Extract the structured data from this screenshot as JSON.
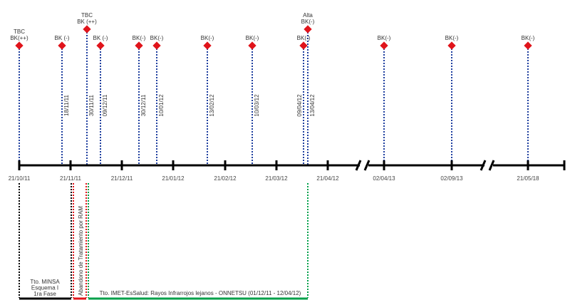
{
  "colors": {
    "axis": "#000000",
    "event_line": "#1f3f9f",
    "marker": "#e0141b",
    "phase1": "#000000",
    "abandon": "#e0141b",
    "imet": "#00a04a"
  },
  "axis_ticks": [
    "21/10/11",
    "21/11/11",
    "21/12/11",
    "21/01/12",
    "21/02/12",
    "21/03/12",
    "21/04/12",
    "02/04/13",
    "02/09/13",
    "21/05/18"
  ],
  "events": [
    {
      "label": [
        "TBC",
        "BK(++)"
      ],
      "date": ""
    },
    {
      "label": [
        "BK (-)"
      ],
      "date": "18/11/11"
    },
    {
      "label": [
        "TBC",
        "BK (++)"
      ],
      "date": "30/11/11"
    },
    {
      "label": [
        "BK (-)"
      ],
      "date": "09/12/11"
    },
    {
      "label": [
        "BK(-)"
      ],
      "date": "30/12/11"
    },
    {
      "label": [
        "BK(-)"
      ],
      "date": "10/01/12"
    },
    {
      "label": [
        "BK(-)"
      ],
      "date": "13/02/12"
    },
    {
      "label": [
        "BK(-)"
      ],
      "date": "10/03/12"
    },
    {
      "label": [
        "BK(-)"
      ],
      "date": "09/04/12"
    },
    {
      "label": [
        "Alta",
        "BK(-)"
      ],
      "date": "13/04/12"
    },
    {
      "label": [
        "BK(-)"
      ],
      "date": ""
    },
    {
      "label": [
        "BK(-)"
      ],
      "date": ""
    },
    {
      "label": [
        "BK(-)"
      ],
      "date": ""
    }
  ],
  "phases": {
    "minsa": [
      "Tto. MINSA",
      "Esquema I",
      "1ra Fase"
    ],
    "abandon": "Abandono de Tratamiento por RAM",
    "imet": "Tto. IMET-EsSalud: Rayos Infrarrojos lejanos - ONNETSU (01/12/11 - 12/04/12)"
  }
}
